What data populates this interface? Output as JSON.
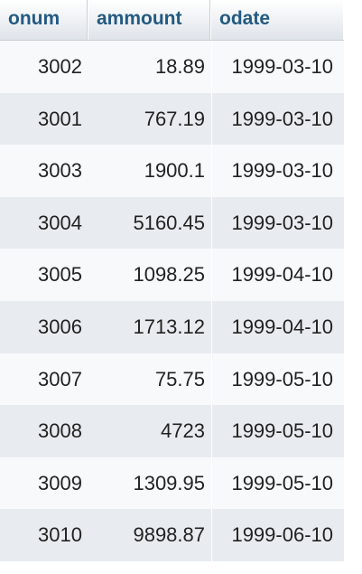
{
  "table": {
    "columns": [
      "onum",
      "ammount",
      "odate"
    ],
    "rows": [
      [
        "3002",
        "18.89",
        "1999-03-10"
      ],
      [
        "3001",
        "767.19",
        "1999-03-10"
      ],
      [
        "3003",
        "1900.1",
        "1999-03-10"
      ],
      [
        "3004",
        "5160.45",
        "1999-03-10"
      ],
      [
        "3005",
        "1098.25",
        "1999-04-10"
      ],
      [
        "3006",
        "1713.12",
        "1999-04-10"
      ],
      [
        "3007",
        "75.75",
        "1999-05-10"
      ],
      [
        "3008",
        "4723",
        "1999-05-10"
      ],
      [
        "3009",
        "1309.95",
        "1999-05-10"
      ],
      [
        "3010",
        "9898.87",
        "1999-06-10"
      ]
    ]
  },
  "colors": {
    "header_text": "#235a81",
    "row_odd": "#f7f9fb",
    "row_even": "#e8ebef"
  }
}
